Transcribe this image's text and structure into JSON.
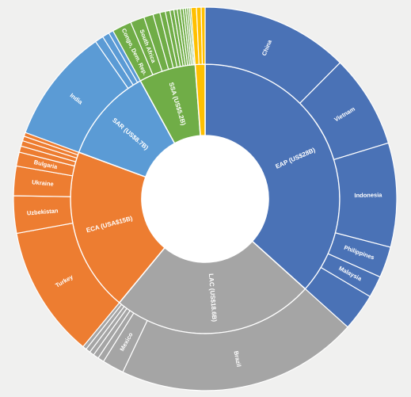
{
  "chart_data": {
    "type": "sunburst",
    "title": "",
    "unit": "US$ billions",
    "colors": {
      "background": "#f0f0ef",
      "EAP": "#4a72b6",
      "LAC": "#a5a5a5",
      "ECA": "#ed7d31",
      "SAR": "#5b9bd5",
      "SSA": "#70ad47",
      "other": "#ffc000",
      "separator": "#ffffff"
    },
    "regions": [
      {
        "key": "EAP",
        "label": "EAP (US$28B)",
        "value": 28.0,
        "children": [
          {
            "label": "China",
            "value": 9.5
          },
          {
            "label": "Vietnam",
            "value": 6.0
          },
          {
            "label": "Indonesia",
            "value": 6.7
          },
          {
            "label": "Philippines",
            "value": 2.0
          },
          {
            "label": "Malaysia",
            "value": 1.4
          },
          {
            "label": "",
            "value": 2.4
          }
        ]
      },
      {
        "key": "LAC",
        "label": "LAC (US$18.6B)",
        "value": 18.6,
        "children": [
          {
            "label": "Brazil",
            "value": 15.6
          },
          {
            "label": "Mexico",
            "value": 1.4
          },
          {
            "label": "",
            "value": 0.4
          },
          {
            "label": "",
            "value": 0.35
          },
          {
            "label": "",
            "value": 0.3
          },
          {
            "label": "",
            "value": 0.3
          },
          {
            "label": "",
            "value": 0.25
          }
        ]
      },
      {
        "key": "ECA",
        "label": "ECA (USA$15B)",
        "value": 15.0,
        "children": [
          {
            "label": "Turkey",
            "value": 8.5
          },
          {
            "label": "Uzbekistan",
            "value": 2.4
          },
          {
            "label": "Ukraine",
            "value": 1.9
          },
          {
            "label": "Bulgaria",
            "value": 0.9
          },
          {
            "label": "",
            "value": 0.4
          },
          {
            "label": "",
            "value": 0.35
          },
          {
            "label": "",
            "value": 0.3
          },
          {
            "label": "",
            "value": 0.25
          }
        ]
      },
      {
        "key": "SAR",
        "label": "SAR (US$8.7B)",
        "value": 8.7,
        "children": [
          {
            "label": "India",
            "value": 7.4
          },
          {
            "label": "",
            "value": 0.55
          },
          {
            "label": "",
            "value": 0.45
          },
          {
            "label": "",
            "value": 0.3
          }
        ]
      },
      {
        "key": "SSA",
        "label": "SSA (US$5.2B)",
        "value": 5.2,
        "children": [
          {
            "label": "Congo, Dem. Rep.",
            "value": 1.25
          },
          {
            "label": "South Africa",
            "value": 0.9
          },
          {
            "label": "",
            "value": 0.6
          },
          {
            "label": "",
            "value": 0.45
          },
          {
            "label": "",
            "value": 0.35
          },
          {
            "label": "",
            "value": 0.3
          },
          {
            "label": "",
            "value": 0.25
          },
          {
            "label": "",
            "value": 0.22
          },
          {
            "label": "",
            "value": 0.2
          },
          {
            "label": "",
            "value": 0.18
          },
          {
            "label": "",
            "value": 0.15
          },
          {
            "label": "",
            "value": 0.13
          },
          {
            "label": "",
            "value": 0.12
          },
          {
            "label": "",
            "value": 0.1
          }
        ]
      },
      {
        "key": "other",
        "label": "",
        "value": 0.9,
        "children": [
          {
            "label": "",
            "value": 0.35
          },
          {
            "label": "",
            "value": 0.3
          },
          {
            "label": "",
            "value": 0.25
          }
        ]
      }
    ]
  }
}
